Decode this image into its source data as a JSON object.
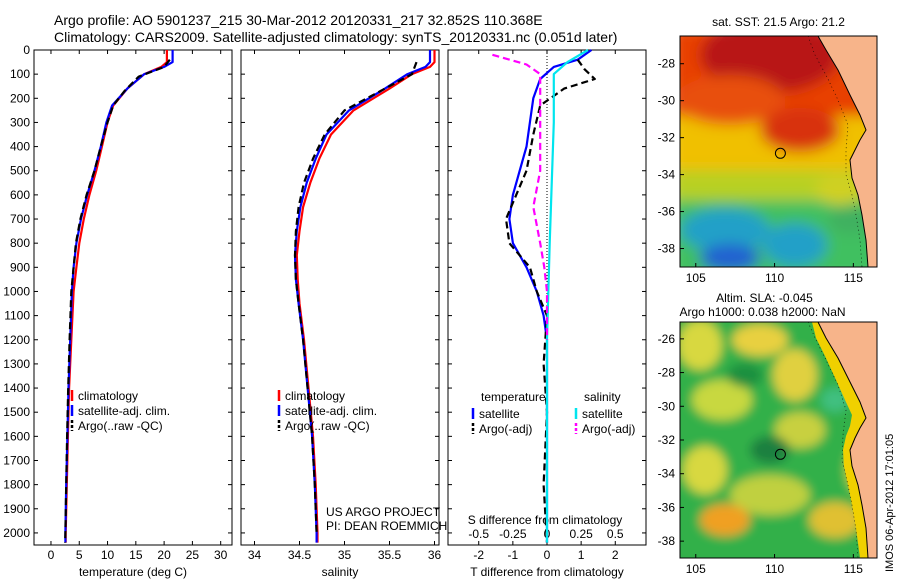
{
  "header": {
    "line1": "Argo profile: AO 5901237_215 30-Mar-2012 20120331_217 32.852S 110.368E",
    "line2": "Climatology: CARS2009. Satellite-adjusted climatology: synTS_20120331.nc (0.051d later)"
  },
  "depth_ticks": [
    "0",
    "100",
    "200",
    "300",
    "400",
    "500",
    "600",
    "700",
    "800",
    "900",
    "1000",
    "1100",
    "1200",
    "1300",
    "1400",
    "1500",
    "1600",
    "1700",
    "1800",
    "1900",
    "2000"
  ],
  "colors": {
    "climatology": "#ff0000",
    "satellite": "#0000ff",
    "argo": "#000000",
    "salinity_sat": "#00e5ee",
    "salinity_argo": "#ff00ff"
  },
  "chart_data": [
    {
      "type": "line",
      "panel": "temperature",
      "xlabel": "temperature (deg C)",
      "xticks": [
        "0",
        "5",
        "10",
        "15",
        "20",
        "25",
        "30"
      ],
      "xlim": [
        -3,
        32
      ],
      "ylim": [
        2050,
        0
      ],
      "legend": [
        "climatology",
        "satellite-adj. clim.",
        "Argo(..raw -QC)"
      ],
      "series": [
        {
          "name": "climatology",
          "points": [
            [
              20.5,
              0
            ],
            [
              20.5,
              50
            ],
            [
              19.5,
              70
            ],
            [
              16.5,
              100
            ],
            [
              13.5,
              160
            ],
            [
              11,
              230
            ],
            [
              10,
              300
            ],
            [
              9,
              400
            ],
            [
              8,
              500
            ],
            [
              6.8,
              600
            ],
            [
              5.8,
              700
            ],
            [
              5,
              800
            ],
            [
              4.5,
              900
            ],
            [
              4,
              1000
            ],
            [
              3.6,
              1200
            ],
            [
              3.2,
              1400
            ],
            [
              3,
              1600
            ],
            [
              2.8,
              1800
            ],
            [
              2.6,
              2000
            ],
            [
              2.6,
              2040
            ]
          ]
        },
        {
          "name": "satellite-adj. clim.",
          "points": [
            [
              21.5,
              0
            ],
            [
              21.5,
              50
            ],
            [
              20,
              70
            ],
            [
              16.5,
              100
            ],
            [
              13.5,
              160
            ],
            [
              10.8,
              230
            ],
            [
              9.8,
              300
            ],
            [
              8.8,
              400
            ],
            [
              7.7,
              500
            ],
            [
              6.4,
              600
            ],
            [
              5.3,
              700
            ],
            [
              4.5,
              800
            ],
            [
              4,
              900
            ],
            [
              3.7,
              1000
            ],
            [
              3.4,
              1200
            ],
            [
              3.1,
              1400
            ],
            [
              2.9,
              1600
            ],
            [
              2.7,
              1800
            ],
            [
              2.55,
              2000
            ],
            [
              2.55,
              2040
            ]
          ]
        },
        {
          "name": "Argo(..raw -QC)",
          "points": [
            [
              21,
              40
            ],
            [
              20,
              70
            ],
            [
              15.5,
              110
            ],
            [
              13,
              170
            ],
            [
              11,
              230
            ],
            [
              10,
              300
            ],
            [
              8.8,
              400
            ],
            [
              7.7,
              500
            ],
            [
              6.3,
              600
            ],
            [
              5.2,
              700
            ],
            [
              4.4,
              800
            ],
            [
              4,
              900
            ],
            [
              3.6,
              1000
            ],
            [
              3.3,
              1200
            ],
            [
              3.05,
              1400
            ],
            [
              2.85,
              1600
            ],
            [
              2.7,
              1800
            ],
            [
              2.55,
              2000
            ],
            [
              2.5,
              2040
            ]
          ]
        }
      ]
    },
    {
      "type": "line",
      "panel": "salinity",
      "xlabel": "salinity",
      "xticks": [
        "34",
        "34.5",
        "35",
        "35.5",
        "36"
      ],
      "xlim": [
        33.85,
        36.05
      ],
      "ylim": [
        2050,
        0
      ],
      "legend": [
        "climatology",
        "satellite-adj. clim.",
        "Argo(..raw -QC)"
      ],
      "annotation": [
        "US ARGO PROJECT",
        "PI: DEAN ROEMMICH"
      ],
      "series": [
        {
          "name": "climatology",
          "points": [
            [
              36,
              0
            ],
            [
              36,
              50
            ],
            [
              35.95,
              70
            ],
            [
              35.75,
              100
            ],
            [
              35.5,
              160
            ],
            [
              35.1,
              250
            ],
            [
              34.85,
              350
            ],
            [
              34.72,
              450
            ],
            [
              34.62,
              550
            ],
            [
              34.54,
              650
            ],
            [
              34.5,
              750
            ],
            [
              34.47,
              850
            ],
            [
              34.48,
              950
            ],
            [
              34.5,
              1050
            ],
            [
              34.55,
              1200
            ],
            [
              34.6,
              1400
            ],
            [
              34.65,
              1600
            ],
            [
              34.68,
              1800
            ],
            [
              34.7,
              2000
            ],
            [
              34.7,
              2040
            ]
          ]
        },
        {
          "name": "satellite-adj. clim.",
          "points": [
            [
              35.95,
              0
            ],
            [
              35.95,
              50
            ],
            [
              35.9,
              70
            ],
            [
              35.7,
              100
            ],
            [
              35.45,
              160
            ],
            [
              35.05,
              250
            ],
            [
              34.8,
              350
            ],
            [
              34.68,
              450
            ],
            [
              34.58,
              550
            ],
            [
              34.51,
              650
            ],
            [
              34.47,
              750
            ],
            [
              34.45,
              850
            ],
            [
              34.46,
              950
            ],
            [
              34.49,
              1050
            ],
            [
              34.54,
              1200
            ],
            [
              34.59,
              1400
            ],
            [
              34.64,
              1600
            ],
            [
              34.67,
              1800
            ],
            [
              34.69,
              2000
            ],
            [
              34.69,
              2040
            ]
          ]
        },
        {
          "name": "Argo(..raw -QC)",
          "points": [
            [
              35.8,
              50
            ],
            [
              35.75,
              100
            ],
            [
              35.4,
              170
            ],
            [
              35,
              250
            ],
            [
              34.78,
              350
            ],
            [
              34.65,
              450
            ],
            [
              34.55,
              550
            ],
            [
              34.49,
              650
            ],
            [
              34.46,
              750
            ],
            [
              34.45,
              850
            ],
            [
              34.46,
              950
            ],
            [
              34.49,
              1050
            ],
            [
              34.54,
              1200
            ],
            [
              34.59,
              1400
            ],
            [
              34.64,
              1600
            ],
            [
              34.67,
              1800
            ],
            [
              34.69,
              2000
            ]
          ]
        }
      ]
    },
    {
      "type": "line",
      "panel": "difference",
      "xlabel": "T difference from climatology",
      "xlabel2": "S difference from climatology",
      "xticks": [
        "-2",
        "-1",
        "0",
        "1",
        "2"
      ],
      "xticks2": [
        "-0.5",
        "-0.25",
        "0",
        "0.25",
        "0.5"
      ],
      "xlim": [
        -2.9,
        2.9
      ],
      "ylim": [
        2050,
        0
      ],
      "legend_temperature": {
        "title": "temperature",
        "items": [
          "satellite",
          "Argo(-adj)"
        ]
      },
      "legend_salinity": {
        "title": "salinity",
        "items": [
          "satellite",
          "Argo(-adj)"
        ]
      },
      "series": [
        {
          "name": "satellite",
          "quantity": "temperature",
          "points": [
            [
              1.3,
              0
            ],
            [
              0.9,
              40
            ],
            [
              0.2,
              70
            ],
            [
              -0.2,
              120
            ],
            [
              -0.4,
              200
            ],
            [
              -0.5,
              300
            ],
            [
              -0.6,
              400
            ],
            [
              -0.8,
              500
            ],
            [
              -1,
              600
            ],
            [
              -1.1,
              700
            ],
            [
              -1,
              800
            ],
            [
              -0.6,
              900
            ],
            [
              -0.3,
              1000
            ],
            [
              -0.1,
              1100
            ],
            [
              0,
              1200
            ],
            [
              0,
              2040
            ]
          ]
        },
        {
          "name": "Argo(-adj)",
          "quantity": "temperature",
          "points": [
            [
              0.9,
              40
            ],
            [
              1.1,
              80
            ],
            [
              1.4,
              120
            ],
            [
              0.5,
              160
            ],
            [
              -0.2,
              230
            ],
            [
              -0.4,
              350
            ],
            [
              -0.6,
              500
            ],
            [
              -1.2,
              700
            ],
            [
              -1.1,
              800
            ],
            [
              -0.5,
              900
            ],
            [
              -0.3,
              1000
            ],
            [
              0,
              1100
            ],
            [
              -0.1,
              1300
            ],
            [
              0,
              1500
            ],
            [
              -0.1,
              1800
            ],
            [
              0,
              2040
            ]
          ]
        },
        {
          "name": "satellite",
          "quantity": "salinity",
          "points": [
            [
              0.3,
              0
            ],
            [
              0.15,
              50
            ],
            [
              0.05,
              100
            ],
            [
              0.05,
              300
            ],
            [
              0.02,
              800
            ],
            [
              0,
              1200
            ],
            [
              0,
              2040
            ]
          ]
        },
        {
          "name": "Argo(-adj)",
          "quantity": "salinity",
          "points": [
            [
              -0.4,
              20
            ],
            [
              -0.15,
              60
            ],
            [
              -0.05,
              100
            ],
            [
              -0.05,
              300
            ],
            [
              -0.05,
              500
            ],
            [
              -0.1,
              650
            ],
            [
              -0.05,
              800
            ],
            [
              -0.02,
              900
            ],
            [
              0,
              1000
            ],
            [
              0,
              1200
            ]
          ]
        }
      ]
    },
    {
      "type": "heatmap",
      "panel": "sst_map",
      "title": "sat. SST: 21.5 Argo: 21.2",
      "xticks": [
        "105",
        "110",
        "115"
      ],
      "yticks": [
        "-28",
        "-30",
        "-32",
        "-34",
        "-36",
        "-38"
      ],
      "xlim": [
        104,
        116.5
      ],
      "ylim": [
        -39,
        -26.5
      ],
      "argo_position": [
        110.37,
        -32.85
      ]
    },
    {
      "type": "heatmap",
      "panel": "sla_map",
      "title": "Altim. SLA: -0.045",
      "subtitle": "Argo h1000: 0.038 h2000: NaN",
      "xticks": [
        "105",
        "110",
        "115"
      ],
      "yticks": [
        "-26",
        "-28",
        "-30",
        "-32",
        "-34",
        "-36",
        "-38"
      ],
      "xlim": [
        104,
        116.5
      ],
      "ylim": [
        -39,
        -25
      ],
      "argo_position": [
        110.37,
        -32.85
      ]
    }
  ],
  "stamp": "IMOS 06-Apr-2012 17:01:05"
}
